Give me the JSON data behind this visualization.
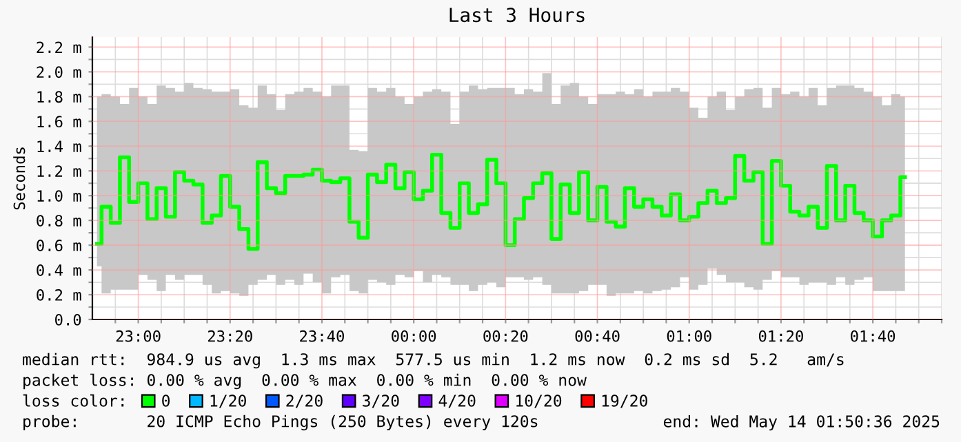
{
  "chart_data": {
    "type": "step",
    "title": "Last 3 Hours",
    "ylabel": "Seconds",
    "x": [
      "2025-05-13T22:51",
      "2025-05-13T22:53",
      "2025-05-13T22:55",
      "2025-05-13T22:57",
      "2025-05-13T22:59",
      "2025-05-13T23:01",
      "2025-05-13T23:03",
      "2025-05-13T23:05",
      "2025-05-13T23:07",
      "2025-05-13T23:09",
      "2025-05-13T23:11",
      "2025-05-13T23:13",
      "2025-05-13T23:15",
      "2025-05-13T23:17",
      "2025-05-13T23:19",
      "2025-05-13T23:21",
      "2025-05-13T23:23",
      "2025-05-13T23:25",
      "2025-05-13T23:27",
      "2025-05-13T23:29",
      "2025-05-13T23:31",
      "2025-05-13T23:33",
      "2025-05-13T23:35",
      "2025-05-13T23:37",
      "2025-05-13T23:39",
      "2025-05-13T23:41",
      "2025-05-13T23:43",
      "2025-05-13T23:45",
      "2025-05-13T23:47",
      "2025-05-13T23:49",
      "2025-05-13T23:51",
      "2025-05-13T23:53",
      "2025-05-13T23:55",
      "2025-05-13T23:57",
      "2025-05-13T23:59",
      "2025-05-14T00:01",
      "2025-05-14T00:03",
      "2025-05-14T00:05",
      "2025-05-14T00:07",
      "2025-05-14T00:09",
      "2025-05-14T00:11",
      "2025-05-14T00:13",
      "2025-05-14T00:15",
      "2025-05-14T00:17",
      "2025-05-14T00:19",
      "2025-05-14T00:21",
      "2025-05-14T00:23",
      "2025-05-14T00:25",
      "2025-05-14T00:27",
      "2025-05-14T00:29",
      "2025-05-14T00:31",
      "2025-05-14T00:33",
      "2025-05-14T00:35",
      "2025-05-14T00:37",
      "2025-05-14T00:39",
      "2025-05-14T00:41",
      "2025-05-14T00:43",
      "2025-05-14T00:45",
      "2025-05-14T00:47",
      "2025-05-14T00:49",
      "2025-05-14T00:51",
      "2025-05-14T00:53",
      "2025-05-14T00:55",
      "2025-05-14T00:57",
      "2025-05-14T00:59",
      "2025-05-14T01:01",
      "2025-05-14T01:03",
      "2025-05-14T01:05",
      "2025-05-14T01:07",
      "2025-05-14T01:09",
      "2025-05-14T01:11",
      "2025-05-14T01:13",
      "2025-05-14T01:15",
      "2025-05-14T01:17",
      "2025-05-14T01:19",
      "2025-05-14T01:21",
      "2025-05-14T01:23",
      "2025-05-14T01:25",
      "2025-05-14T01:27",
      "2025-05-14T01:29",
      "2025-05-14T01:31",
      "2025-05-14T01:33",
      "2025-05-14T01:35",
      "2025-05-14T01:37",
      "2025-05-14T01:39",
      "2025-05-14T01:41",
      "2025-05-14T01:43",
      "2025-05-14T01:45",
      "2025-05-14T01:47"
    ],
    "series": [
      {
        "name": "0",
        "color": "#00ff00",
        "values": [
          0.61,
          0.91,
          0.78,
          1.31,
          0.95,
          1.1,
          0.81,
          1.06,
          0.83,
          1.19,
          1.12,
          1.09,
          0.78,
          0.84,
          1.16,
          0.91,
          0.73,
          0.57,
          1.27,
          1.06,
          1.02,
          1.16,
          1.16,
          1.17,
          1.21,
          1.12,
          1.11,
          1.14,
          0.79,
          0.66,
          1.17,
          1.11,
          1.25,
          1.06,
          1.19,
          0.97,
          1.04,
          1.33,
          0.86,
          0.74,
          1.1,
          0.86,
          0.93,
          1.29,
          1.1,
          0.6,
          0.81,
          0.98,
          1.1,
          1.18,
          0.65,
          1.09,
          0.86,
          1.19,
          0.8,
          1.07,
          0.79,
          0.75,
          1.06,
          0.91,
          0.97,
          0.91,
          0.84,
          1.01,
          0.8,
          0.83,
          0.94,
          1.04,
          0.94,
          0.98,
          1.32,
          1.12,
          1.19,
          0.61,
          1.28,
          1.08,
          0.87,
          0.84,
          0.91,
          0.74,
          1.24,
          0.8,
          1.08,
          0.86,
          0.8,
          0.67,
          0.8,
          0.84,
          1.15
        ],
        "lower": [
          0.43,
          0.21,
          0.24,
          0.24,
          0.24,
          0.36,
          0.32,
          0.23,
          0.36,
          0.32,
          0.36,
          0.36,
          0.28,
          0.21,
          0.23,
          0.21,
          0.19,
          0.28,
          0.32,
          0.36,
          0.28,
          0.32,
          0.28,
          0.37,
          0.3,
          0.21,
          0.34,
          0.36,
          0.23,
          0.21,
          0.32,
          0.3,
          0.28,
          0.36,
          0.34,
          0.39,
          0.3,
          0.36,
          0.34,
          0.28,
          0.28,
          0.23,
          0.28,
          0.3,
          0.26,
          0.34,
          0.34,
          0.32,
          0.34,
          0.28,
          0.21,
          0.21,
          0.21,
          0.23,
          0.28,
          0.28,
          0.19,
          0.21,
          0.21,
          0.23,
          0.21,
          0.23,
          0.24,
          0.26,
          0.34,
          0.24,
          0.28,
          0.41,
          0.36,
          0.3,
          0.3,
          0.26,
          0.24,
          0.32,
          0.39,
          0.34,
          0.34,
          0.28,
          0.3,
          0.3,
          0.28,
          0.34,
          0.28,
          0.32,
          0.34,
          0.23,
          0.23,
          0.23,
          0.23
        ],
        "upper": [
          1.8,
          1.82,
          1.8,
          1.74,
          1.87,
          1.8,
          1.74,
          1.89,
          1.87,
          1.84,
          1.91,
          1.87,
          1.86,
          1.84,
          1.84,
          1.86,
          1.73,
          1.71,
          1.89,
          1.82,
          1.69,
          1.82,
          1.84,
          1.87,
          1.84,
          1.8,
          1.89,
          1.89,
          1.37,
          1.36,
          1.87,
          1.84,
          1.87,
          1.8,
          1.74,
          1.8,
          1.84,
          1.86,
          1.84,
          1.58,
          1.84,
          1.89,
          1.86,
          1.87,
          1.87,
          1.87,
          1.82,
          1.86,
          1.84,
          1.99,
          1.74,
          1.89,
          1.91,
          1.8,
          1.74,
          1.82,
          1.82,
          1.84,
          1.82,
          1.86,
          1.8,
          1.84,
          1.84,
          1.87,
          1.84,
          1.71,
          1.63,
          1.8,
          1.84,
          1.69,
          1.8,
          1.86,
          1.87,
          1.71,
          1.87,
          1.82,
          1.84,
          1.8,
          1.87,
          1.73,
          1.87,
          1.89,
          1.89,
          1.87,
          1.84,
          1.8,
          1.73,
          1.82,
          1.8
        ]
      },
      {
        "name": "1/20",
        "color": "#00b8ff",
        "values": [
          null,
          null,
          null,
          null,
          null,
          null,
          null,
          null,
          null,
          null,
          null,
          null,
          null,
          null,
          null,
          null,
          null,
          null,
          null,
          null,
          null,
          null,
          null,
          null,
          null,
          null,
          null,
          null,
          null,
          null,
          null,
          null,
          null,
          null,
          null,
          null,
          null,
          null,
          null,
          null,
          null,
          null,
          null,
          null,
          null,
          null,
          null,
          null,
          null,
          null,
          null,
          null,
          null,
          null,
          null,
          null,
          null,
          null,
          null,
          null,
          null,
          null,
          null,
          null,
          null,
          null,
          null,
          null,
          null,
          null,
          null,
          null,
          null,
          null,
          null,
          null,
          null,
          null,
          null,
          null,
          null,
          null,
          null,
          null,
          null,
          null,
          null,
          null,
          null
        ]
      },
      {
        "name": "2/20",
        "color": "#0059ff",
        "values": [
          null,
          null,
          null,
          null,
          null,
          null,
          null,
          null,
          null,
          null,
          null,
          null,
          null,
          null,
          null,
          null,
          null,
          null,
          null,
          null,
          null,
          null,
          null,
          null,
          null,
          null,
          null,
          null,
          null,
          null,
          null,
          null,
          null,
          null,
          null,
          null,
          null,
          null,
          null,
          null,
          null,
          null,
          null,
          null,
          null,
          null,
          null,
          null,
          null,
          null,
          null,
          null,
          null,
          null,
          null,
          null,
          null,
          null,
          null,
          null,
          null,
          null,
          null,
          null,
          null,
          null,
          null,
          null,
          null,
          null,
          null,
          null,
          null,
          null,
          null,
          null,
          null,
          null,
          null,
          null,
          null,
          null,
          null,
          null,
          null,
          null,
          null,
          null,
          null
        ]
      },
      {
        "name": "3/20",
        "color": "#5e00ff",
        "values": [
          null,
          null,
          null,
          null,
          null,
          null,
          null,
          null,
          null,
          null,
          null,
          null,
          null,
          null,
          null,
          null,
          null,
          null,
          null,
          null,
          null,
          null,
          null,
          null,
          null,
          null,
          null,
          null,
          null,
          null,
          null,
          null,
          null,
          null,
          null,
          null,
          null,
          null,
          null,
          null,
          null,
          null,
          null,
          null,
          null,
          null,
          null,
          null,
          null,
          null,
          null,
          null,
          null,
          null,
          null,
          null,
          null,
          null,
          null,
          null,
          null,
          null,
          null,
          null,
          null,
          null,
          null,
          null,
          null,
          null,
          null,
          null,
          null,
          null,
          null,
          null,
          null,
          null,
          null,
          null,
          null,
          null,
          null,
          null,
          null,
          null,
          null,
          null,
          null
        ]
      },
      {
        "name": "4/20",
        "color": "#7e00ff",
        "values": [
          null,
          null,
          null,
          null,
          null,
          null,
          null,
          null,
          null,
          null,
          null,
          null,
          null,
          null,
          null,
          null,
          null,
          null,
          null,
          null,
          null,
          null,
          null,
          null,
          null,
          null,
          null,
          null,
          null,
          null,
          null,
          null,
          null,
          null,
          null,
          null,
          null,
          null,
          null,
          null,
          null,
          null,
          null,
          null,
          null,
          null,
          null,
          null,
          null,
          null,
          null,
          null,
          null,
          null,
          null,
          null,
          null,
          null,
          null,
          null,
          null,
          null,
          null,
          null,
          null,
          null,
          null,
          null,
          null,
          null,
          null,
          null,
          null,
          null,
          null,
          null,
          null,
          null,
          null,
          null,
          null,
          null,
          null,
          null,
          null,
          null,
          null,
          null,
          null
        ]
      },
      {
        "name": "10/20",
        "color": "#dd00ff",
        "values": [
          null,
          null,
          null,
          null,
          null,
          null,
          null,
          null,
          null,
          null,
          null,
          null,
          null,
          null,
          null,
          null,
          null,
          null,
          null,
          null,
          null,
          null,
          null,
          null,
          null,
          null,
          null,
          null,
          null,
          null,
          null,
          null,
          null,
          null,
          null,
          null,
          null,
          null,
          null,
          null,
          null,
          null,
          null,
          null,
          null,
          null,
          null,
          null,
          null,
          null,
          null,
          null,
          null,
          null,
          null,
          null,
          null,
          null,
          null,
          null,
          null,
          null,
          null,
          null,
          null,
          null,
          null,
          null,
          null,
          null,
          null,
          null,
          null,
          null,
          null,
          null,
          null,
          null,
          null,
          null,
          null,
          null,
          null,
          null,
          null,
          null,
          null,
          null,
          null
        ]
      },
      {
        "name": "19/20",
        "color": "#ff0000",
        "values": [
          null,
          null,
          null,
          null,
          null,
          null,
          null,
          null,
          null,
          null,
          null,
          null,
          null,
          null,
          null,
          null,
          null,
          null,
          null,
          null,
          null,
          null,
          null,
          null,
          null,
          null,
          null,
          null,
          null,
          null,
          null,
          null,
          null,
          null,
          null,
          null,
          null,
          null,
          null,
          null,
          null,
          null,
          null,
          null,
          null,
          null,
          null,
          null,
          null,
          null,
          null,
          null,
          null,
          null,
          null,
          null,
          null,
          null,
          null,
          null,
          null,
          null,
          null,
          null,
          null,
          null,
          null,
          null,
          null,
          null,
          null,
          null,
          null,
          null,
          null,
          null,
          null,
          null,
          null,
          null,
          null,
          null,
          null,
          null,
          null,
          null,
          null,
          null,
          null
        ]
      }
    ],
    "xlim": [
      "2025-05-13T22:50",
      "2025-05-14T01:55"
    ],
    "xticks": [
      {
        "value": "2025-05-13T22:55",
        "label": null
      },
      {
        "value": "2025-05-13T23:00",
        "label": "23:00"
      },
      {
        "value": "2025-05-13T23:05",
        "label": null
      },
      {
        "value": "2025-05-13T23:10",
        "label": null
      },
      {
        "value": "2025-05-13T23:15",
        "label": null
      },
      {
        "value": "2025-05-13T23:20",
        "label": "23:20"
      },
      {
        "value": "2025-05-13T23:25",
        "label": null
      },
      {
        "value": "2025-05-13T23:30",
        "label": null
      },
      {
        "value": "2025-05-13T23:35",
        "label": null
      },
      {
        "value": "2025-05-13T23:40",
        "label": "23:40"
      },
      {
        "value": "2025-05-13T23:45",
        "label": null
      },
      {
        "value": "2025-05-13T23:50",
        "label": null
      },
      {
        "value": "2025-05-13T23:55",
        "label": null
      },
      {
        "value": "2025-05-14T00:00",
        "label": "00:00"
      },
      {
        "value": "2025-05-14T00:05",
        "label": null
      },
      {
        "value": "2025-05-14T00:10",
        "label": null
      },
      {
        "value": "2025-05-14T00:15",
        "label": null
      },
      {
        "value": "2025-05-14T00:20",
        "label": "00:20"
      },
      {
        "value": "2025-05-14T00:25",
        "label": null
      },
      {
        "value": "2025-05-14T00:30",
        "label": null
      },
      {
        "value": "2025-05-14T00:35",
        "label": null
      },
      {
        "value": "2025-05-14T00:40",
        "label": "00:40"
      },
      {
        "value": "2025-05-14T00:45",
        "label": null
      },
      {
        "value": "2025-05-14T00:50",
        "label": null
      },
      {
        "value": "2025-05-14T00:55",
        "label": null
      },
      {
        "value": "2025-05-14T01:00",
        "label": "01:00"
      },
      {
        "value": "2025-05-14T01:05",
        "label": null
      },
      {
        "value": "2025-05-14T01:10",
        "label": null
      },
      {
        "value": "2025-05-14T01:15",
        "label": null
      },
      {
        "value": "2025-05-14T01:20",
        "label": "01:20"
      },
      {
        "value": "2025-05-14T01:25",
        "label": null
      },
      {
        "value": "2025-05-14T01:30",
        "label": null
      },
      {
        "value": "2025-05-14T01:35",
        "label": null
      },
      {
        "value": "2025-05-14T01:40",
        "label": "01:40"
      },
      {
        "value": "2025-05-14T01:45",
        "label": null
      },
      {
        "value": "2025-05-14T01:50",
        "label": null
      },
      {
        "value": "2025-05-14T01:55",
        "label": null
      }
    ],
    "ylim": [
      0,
      2.28
    ],
    "yticks": [
      {
        "value": 0,
        "label": "0.0"
      },
      {
        "value": 0.1,
        "label": null
      },
      {
        "value": 0.2,
        "label": "0.2 m"
      },
      {
        "value": 0.3,
        "label": null
      },
      {
        "value": 0.4,
        "label": "0.4 m"
      },
      {
        "value": 0.5,
        "label": null
      },
      {
        "value": 0.6,
        "label": "0.6 m"
      },
      {
        "value": 0.7,
        "label": null
      },
      {
        "value": 0.8,
        "label": "0.8 m"
      },
      {
        "value": 0.9,
        "label": null
      },
      {
        "value": 1.0,
        "label": "1.0 m"
      },
      {
        "value": 1.1,
        "label": null
      },
      {
        "value": 1.2,
        "label": "1.2 m"
      },
      {
        "value": 1.3,
        "label": null
      },
      {
        "value": 1.4,
        "label": "1.4 m"
      },
      {
        "value": 1.5,
        "label": null
      },
      {
        "value": 1.6,
        "label": "1.6 m"
      },
      {
        "value": 1.7,
        "label": null
      },
      {
        "value": 1.8,
        "label": "1.8 m"
      },
      {
        "value": 1.9,
        "label": null
      },
      {
        "value": 2.0,
        "label": "2.0 m"
      },
      {
        "value": 2.1,
        "label": null
      },
      {
        "value": 2.2,
        "label": "2.2 m"
      }
    ],
    "grid": true,
    "legend": "bottom",
    "annotations": [
      "median rtt:  984.9 us avg  1.3 ms max  577.5 us min  1.2 ms now  0.2 ms sd  5.2   am/s",
      "packet loss: 0.00 % avg  0.00 % max  0.00 % min  0.00 % now",
      "loss color:",
      "probe:       20 ICMP Echo Pings (250 Bytes) every 120s",
      "end: Wed May 14 01:50:36 2025"
    ]
  }
}
